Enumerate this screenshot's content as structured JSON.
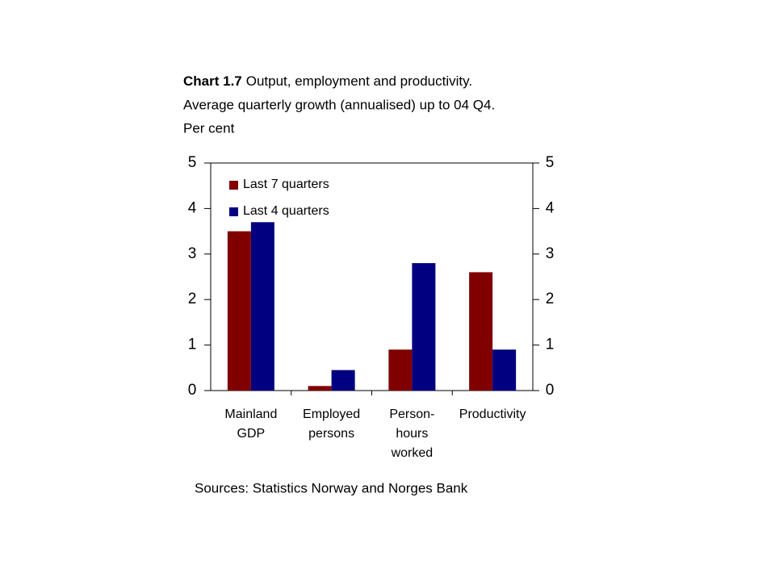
{
  "chart_data": {
    "type": "bar",
    "title_label": "Chart 1.7",
    "title": "Output, employment and productivity.",
    "subtitle": [
      "Average quarterly growth (annualised) up to 04 Q4.",
      "Per cent"
    ],
    "categories": [
      [
        "Mainland",
        "GDP"
      ],
      [
        "Employed",
        "persons"
      ],
      [
        "Person-",
        "hours",
        "worked"
      ],
      [
        "Productivity"
      ]
    ],
    "series": [
      {
        "name": "Last 7 quarters",
        "color": "#800000",
        "values": [
          3.5,
          0.1,
          0.9,
          2.6
        ]
      },
      {
        "name": "Last 4 quarters",
        "color": "#000080",
        "values": [
          3.7,
          0.45,
          2.8,
          0.9
        ]
      }
    ],
    "ylim": [
      0,
      5
    ],
    "yticks": [
      0,
      1,
      2,
      3,
      4,
      5
    ],
    "y2lim": [
      0,
      5
    ],
    "y2ticks": [
      0,
      1,
      2,
      3,
      4,
      5
    ],
    "legend": "upper left",
    "source": "Sources: Statistics Norway and Norges Bank"
  }
}
